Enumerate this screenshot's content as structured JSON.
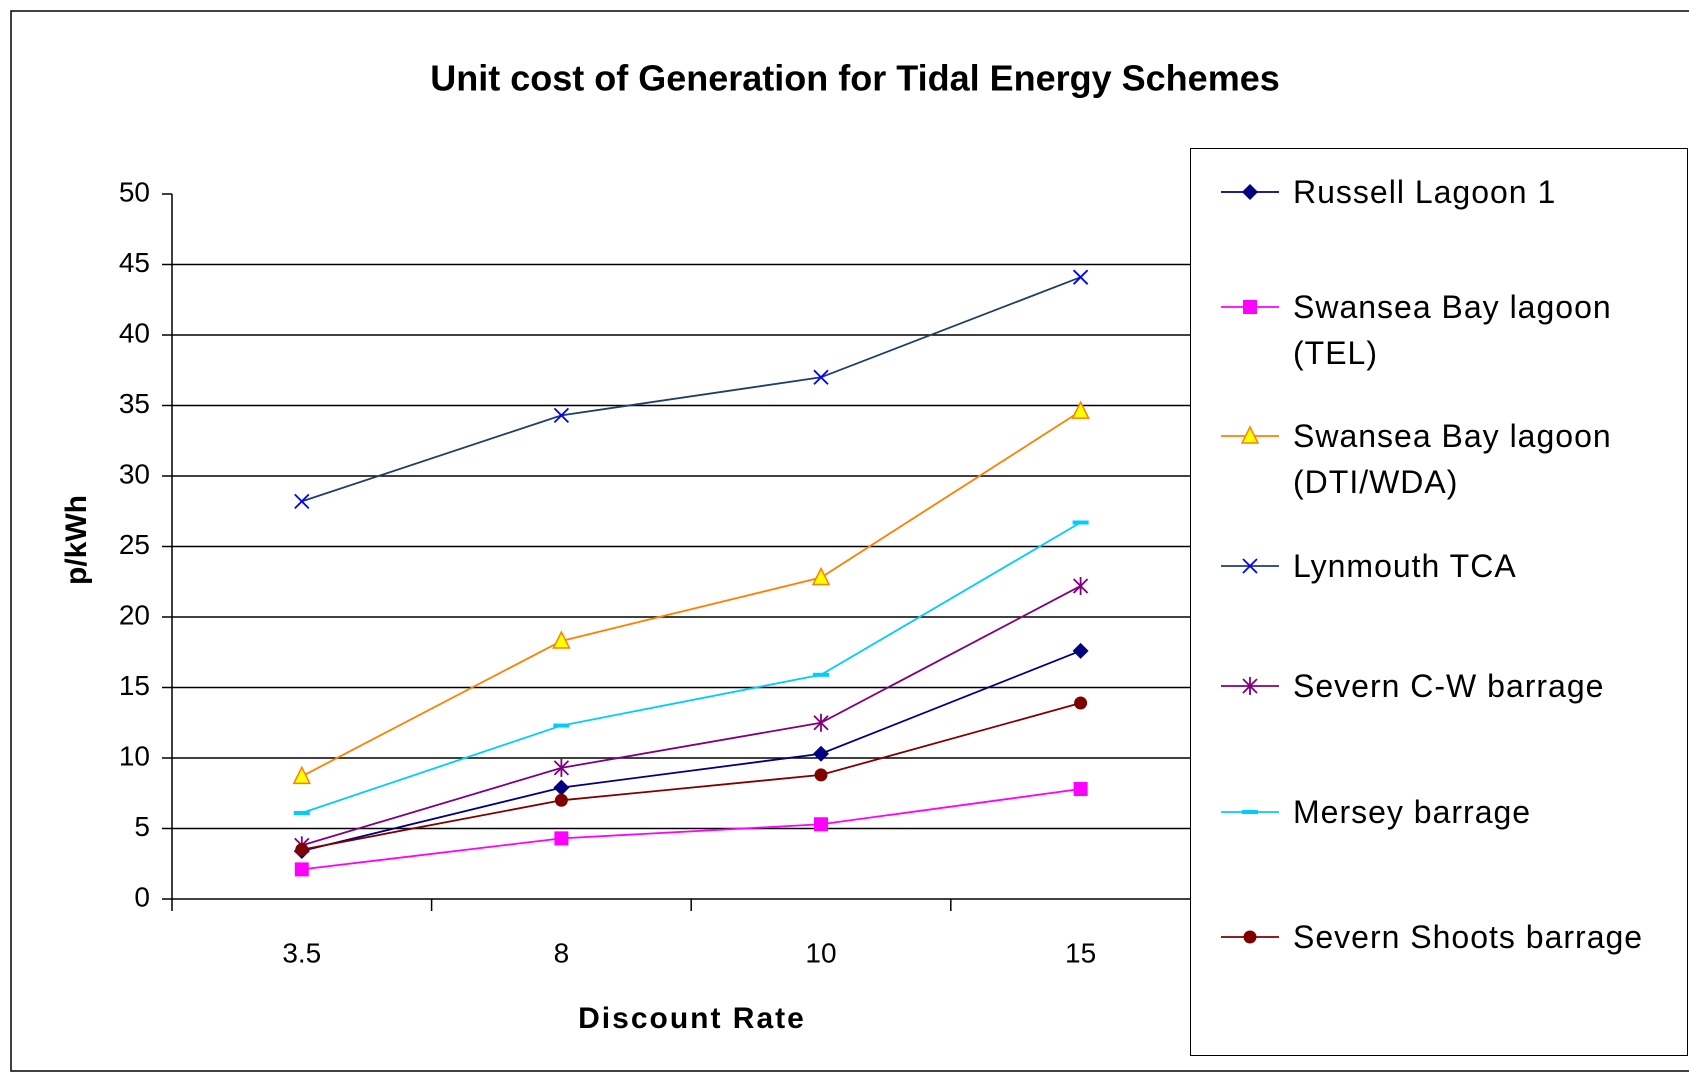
{
  "chart_data": {
    "type": "line",
    "title": "Unit cost of Generation for Tidal Energy Schemes",
    "x_label": "Discount Rate",
    "y_label": "p/kWh",
    "categories": [
      "3.5",
      "8",
      "10",
      "15"
    ],
    "ylim": [
      0,
      50
    ],
    "yticks": [
      0,
      5,
      10,
      15,
      20,
      25,
      30,
      35,
      40,
      45,
      50
    ],
    "grid": true,
    "legend": "right",
    "series": [
      {
        "name": "Russell Lagoon 1",
        "color": "#000080",
        "marker": "diamond",
        "marker_color": "#000080",
        "values": [
          3.4,
          7.9,
          10.3,
          17.6
        ]
      },
      {
        "name": "Swansea Bay lagoon (TEL)",
        "color": "#ff00ff",
        "marker": "square",
        "marker_color": "#ff00ff",
        "values": [
          2.1,
          4.3,
          5.3,
          7.8
        ]
      },
      {
        "name": "Swansea Bay lagoon (DTI/WDA)",
        "color": "#ff8000",
        "marker": "triangle",
        "marker_color": "#ffff00",
        "values": [
          8.7,
          18.3,
          22.8,
          34.6
        ]
      },
      {
        "name": "Lynmouth TCA",
        "color": "#1f3f66",
        "marker": "x",
        "marker_color": "#0000ff",
        "values": [
          28.2,
          34.3,
          37.0,
          44.1
        ]
      },
      {
        "name": "Severn C-W barrage",
        "color": "#800080",
        "marker": "star",
        "marker_color": "#800080",
        "values": [
          3.8,
          9.3,
          12.5,
          22.2
        ]
      },
      {
        "name": "Mersey barrage",
        "color": "#00ccff",
        "marker": "dash",
        "marker_color": "#00ccff",
        "values": [
          6.1,
          12.3,
          15.9,
          26.7
        ]
      },
      {
        "name": "Severn Shoots barrage",
        "color": "#800000",
        "marker": "circle",
        "marker_color": "#800000",
        "values": [
          3.5,
          7.0,
          8.8,
          13.9
        ]
      }
    ]
  }
}
